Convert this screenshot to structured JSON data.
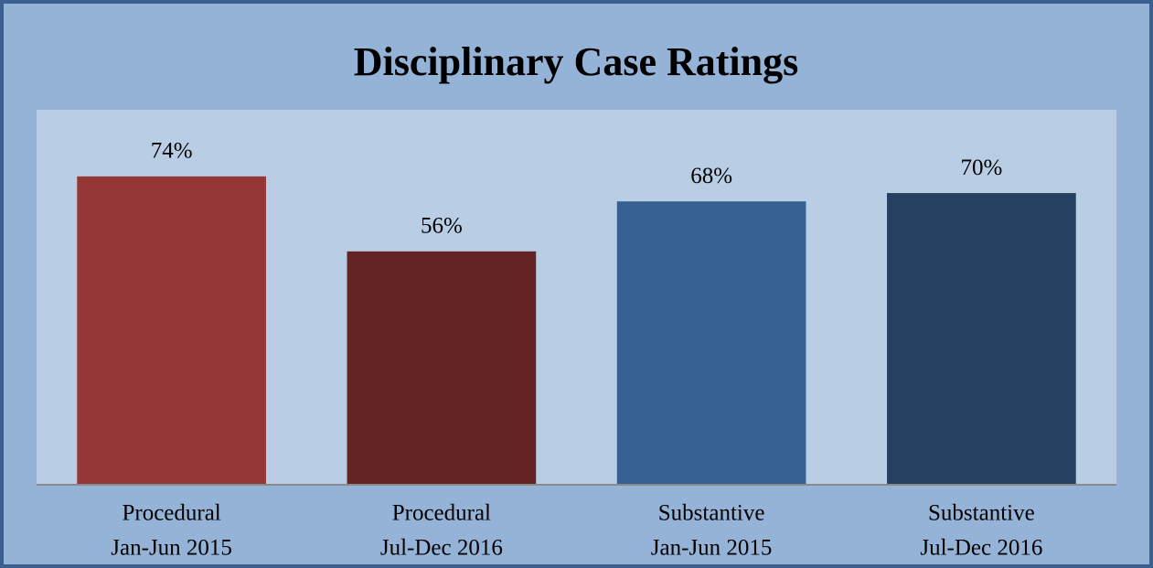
{
  "chart_data": {
    "type": "bar",
    "title": "Disciplinary Case Ratings",
    "categories": [
      [
        "Procedural",
        "Jan-Jun 2015"
      ],
      [
        "Procedural",
        "Jul-Dec 2016"
      ],
      [
        "Substantive",
        "Jan-Jun 2015"
      ],
      [
        "Substantive",
        "Jul-Dec 2016"
      ]
    ],
    "values": [
      74,
      56,
      68,
      70
    ],
    "value_labels": [
      "74%",
      "56%",
      "68%",
      "70%"
    ],
    "colors": [
      "#953735",
      "#632423",
      "#376092",
      "#254061"
    ],
    "ylim": [
      0,
      100
    ]
  }
}
